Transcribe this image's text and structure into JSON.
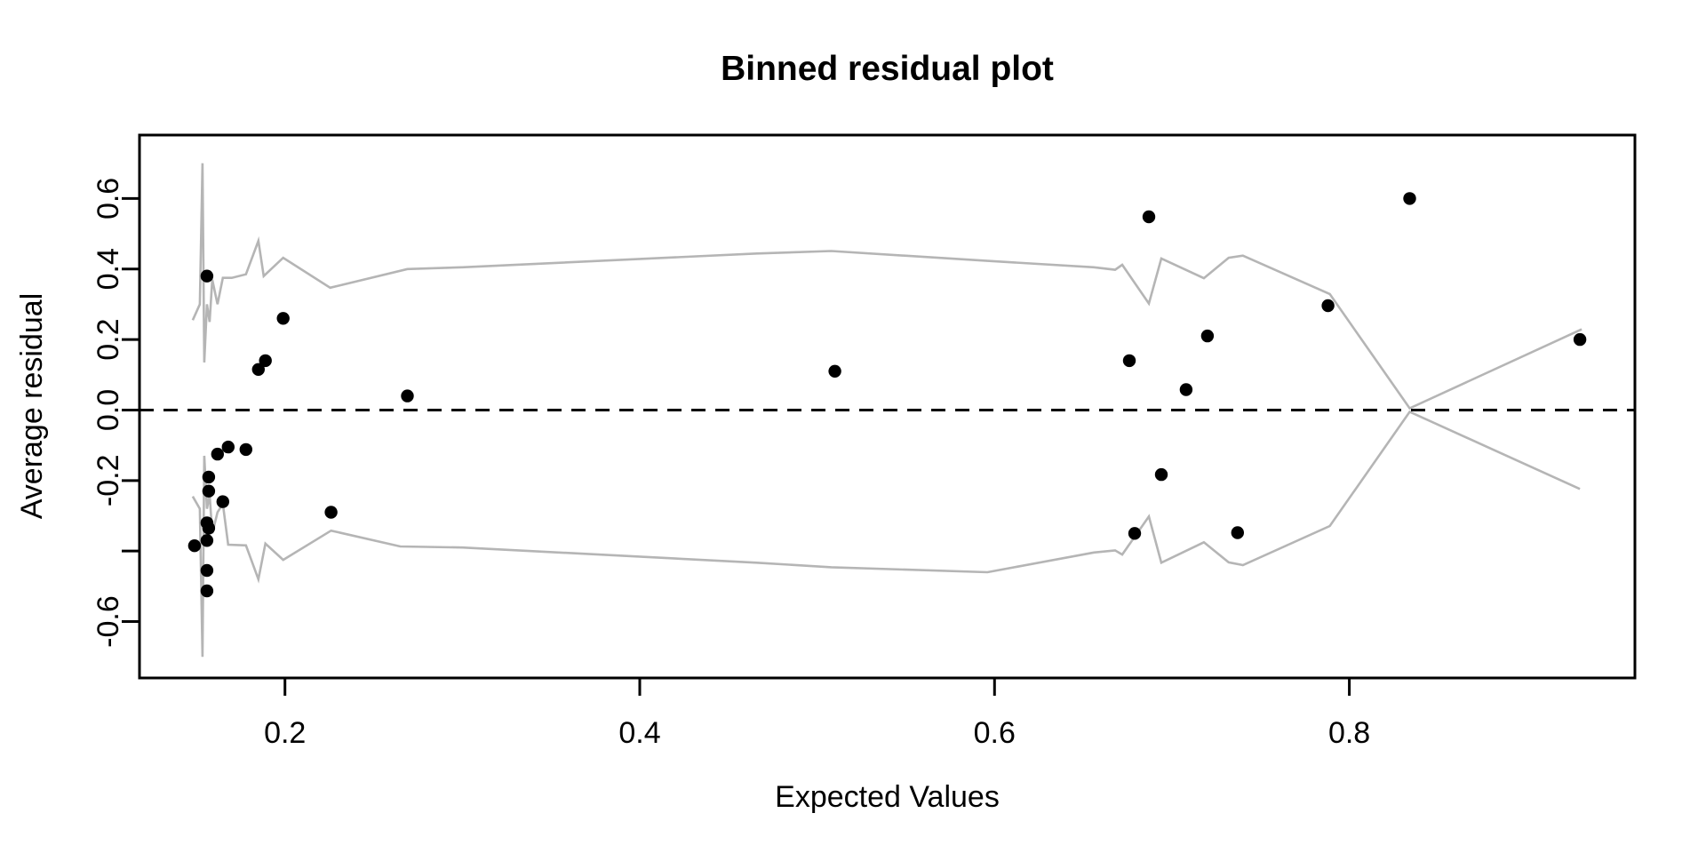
{
  "title": "Binned residual plot",
  "xlabel": "Expected Values",
  "ylabel": "Average residual",
  "chart_data": {
    "type": "scatter",
    "title": "Binned residual plot",
    "xlabel": "Expected Values",
    "ylabel": "Average residual",
    "xlim": [
      0.118,
      0.961
    ],
    "ylim": [
      -0.76,
      0.78
    ],
    "grid": false,
    "legend": "none",
    "x_ticks": {
      "values": [
        0.2,
        0.4,
        0.6,
        0.8
      ],
      "labels": [
        "0.2",
        "0.4",
        "0.6",
        "0.8"
      ]
    },
    "y_ticks": {
      "values": [
        0.6,
        0.4,
        0.2,
        0.0,
        -0.2,
        -0.4,
        -0.6
      ],
      "labels": [
        "0.6",
        "0.4",
        "0.2",
        "0.0",
        "-0.2",
        "",
        "-0.6"
      ]
    },
    "zero_line_y": 0,
    "zero_line_style": "dashed",
    "colors": {
      "point": "#000000",
      "band": "#b5b5b5",
      "axis": "#000000",
      "zero_line": "#000000",
      "background": "#ffffff",
      "text": "#000000"
    },
    "series": [
      {
        "name": "binned-averages",
        "type": "scatter",
        "points": [
          [
            0.156,
            0.38
          ],
          [
            0.199,
            0.26
          ],
          [
            0.189,
            0.14
          ],
          [
            0.185,
            0.115
          ],
          [
            0.269,
            0.04
          ],
          [
            0.162,
            -0.125
          ],
          [
            0.168,
            -0.105
          ],
          [
            0.178,
            -0.112
          ],
          [
            0.157,
            -0.19
          ],
          [
            0.157,
            -0.23
          ],
          [
            0.165,
            -0.26
          ],
          [
            0.156,
            -0.32
          ],
          [
            0.157,
            -0.335
          ],
          [
            0.156,
            -0.37
          ],
          [
            0.149,
            -0.385
          ],
          [
            0.156,
            -0.455
          ],
          [
            0.156,
            -0.513
          ],
          [
            0.226,
            -0.29
          ],
          [
            0.51,
            0.11
          ],
          [
            0.676,
            0.14
          ],
          [
            0.687,
            0.548
          ],
          [
            0.708,
            0.058
          ],
          [
            0.72,
            0.21
          ],
          [
            0.694,
            -0.183
          ],
          [
            0.679,
            -0.35
          ],
          [
            0.737,
            -0.348
          ],
          [
            0.788,
            0.296
          ],
          [
            0.834,
            0.6
          ],
          [
            0.93,
            0.2
          ]
        ]
      },
      {
        "name": "upper-2se-band",
        "type": "line",
        "points": [
          [
            0.148,
            0.255
          ],
          [
            0.152,
            0.3
          ],
          [
            0.1535,
            0.7
          ],
          [
            0.1545,
            0.135
          ],
          [
            0.156,
            0.3
          ],
          [
            0.1575,
            0.25
          ],
          [
            0.159,
            0.37
          ],
          [
            0.162,
            0.3
          ],
          [
            0.165,
            0.375
          ],
          [
            0.17,
            0.375
          ],
          [
            0.178,
            0.385
          ],
          [
            0.185,
            0.48
          ],
          [
            0.188,
            0.38
          ],
          [
            0.199,
            0.432
          ],
          [
            0.2255,
            0.347
          ],
          [
            0.269,
            0.4
          ],
          [
            0.3,
            0.405
          ],
          [
            0.466,
            0.444
          ],
          [
            0.508,
            0.451
          ],
          [
            0.596,
            0.423
          ],
          [
            0.656,
            0.405
          ],
          [
            0.668,
            0.398
          ],
          [
            0.672,
            0.412
          ],
          [
            0.687,
            0.302
          ],
          [
            0.694,
            0.43
          ],
          [
            0.718,
            0.374
          ],
          [
            0.732,
            0.432
          ],
          [
            0.74,
            0.438
          ],
          [
            0.789,
            0.329
          ],
          [
            0.834,
            0.005
          ],
          [
            0.931,
            0.229
          ]
        ]
      },
      {
        "name": "lower-2se-band",
        "type": "line",
        "points": [
          [
            0.148,
            -0.245
          ],
          [
            0.152,
            -0.28
          ],
          [
            0.1535,
            -0.7
          ],
          [
            0.1545,
            -0.13
          ],
          [
            0.156,
            -0.28
          ],
          [
            0.1575,
            -0.24
          ],
          [
            0.159,
            -0.35
          ],
          [
            0.162,
            -0.29
          ],
          [
            0.165,
            -0.266
          ],
          [
            0.168,
            -0.382
          ],
          [
            0.178,
            -0.384
          ],
          [
            0.185,
            -0.48
          ],
          [
            0.189,
            -0.379
          ],
          [
            0.199,
            -0.425
          ],
          [
            0.226,
            -0.342
          ],
          [
            0.265,
            -0.387
          ],
          [
            0.3,
            -0.39
          ],
          [
            0.466,
            -0.433
          ],
          [
            0.508,
            -0.446
          ],
          [
            0.596,
            -0.46
          ],
          [
            0.656,
            -0.404
          ],
          [
            0.668,
            -0.398
          ],
          [
            0.672,
            -0.41
          ],
          [
            0.687,
            -0.302
          ],
          [
            0.694,
            -0.433
          ],
          [
            0.718,
            -0.375
          ],
          [
            0.732,
            -0.432
          ],
          [
            0.74,
            -0.44
          ],
          [
            0.789,
            -0.329
          ],
          [
            0.834,
            -0.005
          ],
          [
            0.93,
            -0.224
          ]
        ]
      }
    ]
  }
}
